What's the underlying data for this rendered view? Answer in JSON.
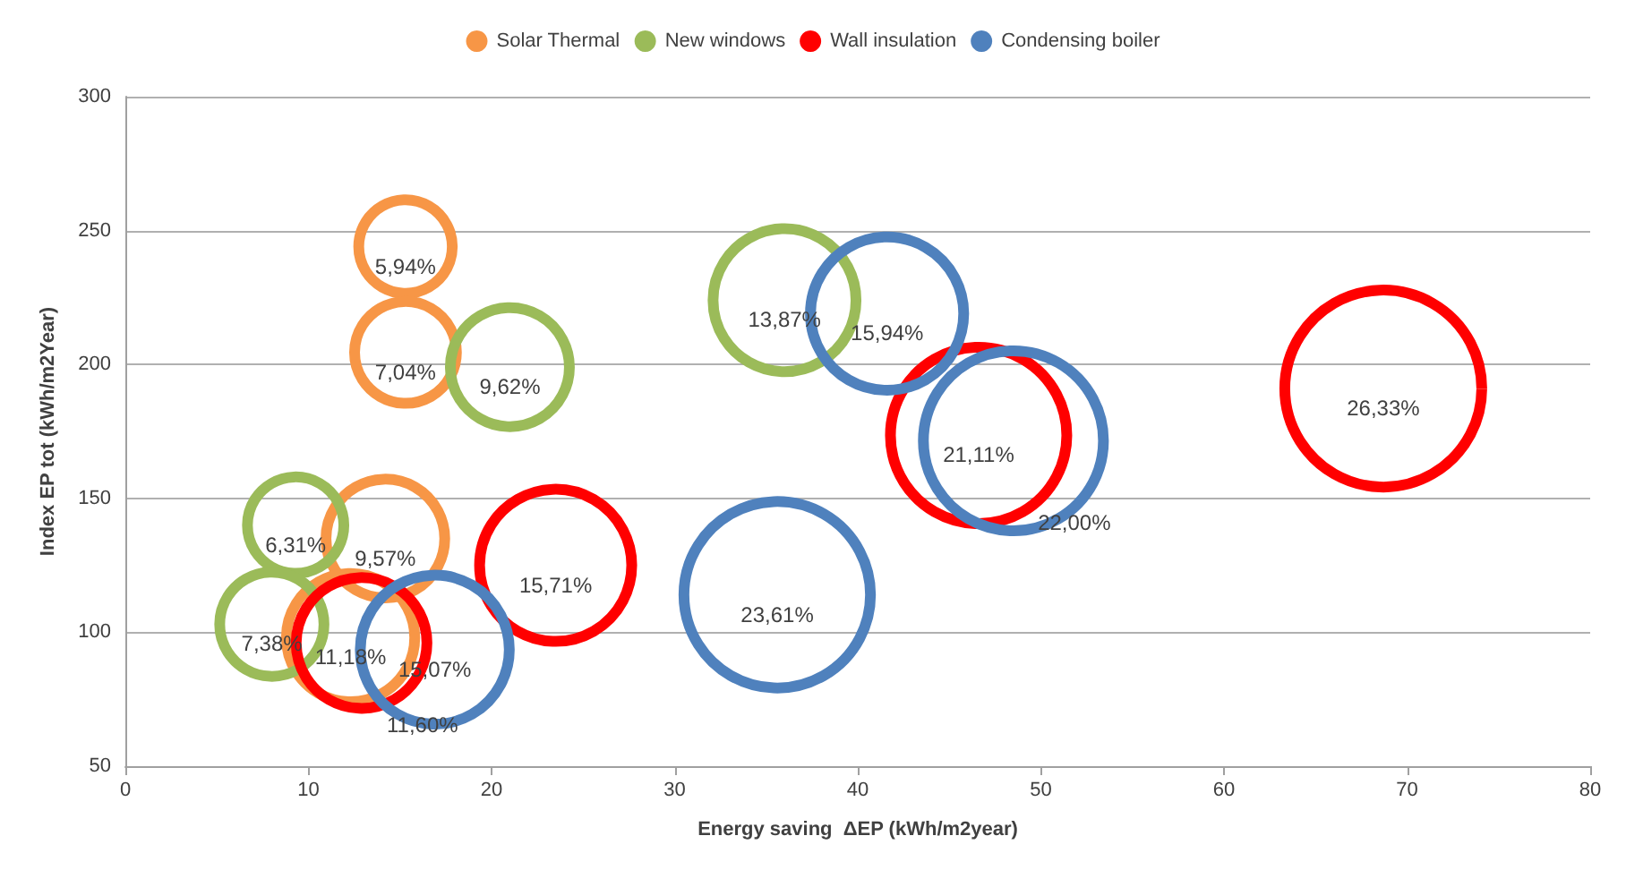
{
  "chart_data": {
    "type": "bubble",
    "xlabel": "Energy saving  ΔEP (kWh/m2year)",
    "ylabel": "Index EP tot (kWh/m2Year)",
    "xlim": [
      0,
      80
    ],
    "xticks": [
      0,
      10,
      20,
      30,
      40,
      50,
      60,
      70,
      80
    ],
    "ylim": [
      50,
      300
    ],
    "yticks": [
      50,
      100,
      150,
      200,
      250,
      300
    ],
    "grid": "y",
    "legend": "top",
    "marker": "circle",
    "series": [
      {
        "name": "Solar Thermal",
        "color": "#f79646",
        "x": [
          15.3,
          15.3,
          14.2,
          12.3
        ],
        "values": [
          244,
          204.5,
          135,
          98
        ],
        "sizes": [
          5.94,
          7.04,
          9.57,
          11.18
        ],
        "value_labels": [
          "5,94%",
          "7,04%",
          "9,57%",
          "11,18%"
        ]
      },
      {
        "name": "New windows",
        "color": "#9bbb59",
        "x": [
          21.0,
          9.3,
          8.0,
          36.0
        ],
        "values": [
          199,
          140,
          103,
          224
        ],
        "sizes": [
          9.62,
          6.31,
          7.38,
          13.87
        ],
        "value_labels": [
          "9,62%",
          "6,31%",
          "7,38%",
          "13,87%"
        ]
      },
      {
        "name": "Wall insulation",
        "color": "#ff0000",
        "x": [
          12.9,
          23.5,
          46.6,
          68.7
        ],
        "values": [
          96,
          125,
          173.5,
          191
        ],
        "sizes": [
          11.6,
          15.71,
          21.11,
          26.33
        ],
        "value_labels": [
          "11,60%",
          "15,71%",
          "21,11%",
          "26,33%"
        ]
      },
      {
        "name": "Condensing boiler",
        "color": "#4f81bd",
        "x": [
          16.9,
          41.6,
          48.5,
          35.6
        ],
        "values": [
          93.5,
          219,
          171.5,
          114
        ],
        "sizes": [
          15.07,
          15.94,
          22.0,
          23.61
        ],
        "value_labels": [
          "15,07%",
          "15,94%",
          "22,00%",
          "23,61%"
        ]
      }
    ]
  }
}
